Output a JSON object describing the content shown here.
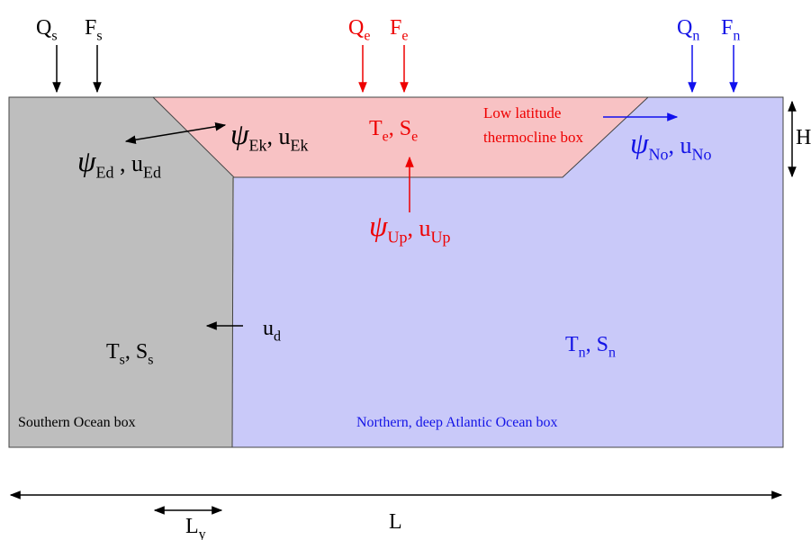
{
  "labels": [
    {
      "id": "qs",
      "parts": [
        {
          "t": "Q"
        },
        {
          "sub": "s"
        }
      ]
    },
    {
      "id": "fs",
      "parts": [
        {
          "t": "F"
        },
        {
          "sub": "s"
        }
      ]
    },
    {
      "id": "qe",
      "parts": [
        {
          "t": "Q"
        },
        {
          "sub": "e"
        }
      ]
    },
    {
      "id": "fe",
      "parts": [
        {
          "t": "F"
        },
        {
          "sub": "e"
        }
      ]
    },
    {
      "id": "qn",
      "parts": [
        {
          "t": "Q"
        },
        {
          "sub": "n"
        }
      ]
    },
    {
      "id": "fn",
      "parts": [
        {
          "t": "F"
        },
        {
          "sub": "n"
        }
      ]
    },
    {
      "id": "h",
      "parts": [
        {
          "t": "H"
        }
      ]
    },
    {
      "id": "ek",
      "parts": [
        {
          "greek": "ψ"
        },
        {
          "sub": "Ek"
        },
        {
          "t": ", u"
        },
        {
          "sub": "Ek"
        }
      ]
    },
    {
      "id": "ed",
      "parts": [
        {
          "greek": "ψ"
        },
        {
          "sub": "Ed"
        },
        {
          "t": " , u"
        },
        {
          "sub": "Ed"
        }
      ]
    },
    {
      "id": "te",
      "parts": [
        {
          "t": "T"
        },
        {
          "sub": "e"
        },
        {
          "t": ", S"
        },
        {
          "sub": "e"
        }
      ]
    },
    {
      "id": "low1",
      "parts": [
        {
          "t": "Low latitude"
        }
      ]
    },
    {
      "id": "low2",
      "parts": [
        {
          "t": "thermocline box"
        }
      ]
    },
    {
      "id": "no",
      "parts": [
        {
          "greek": "ψ"
        },
        {
          "sub": "No"
        },
        {
          "t": ", u"
        },
        {
          "sub": "No"
        }
      ]
    },
    {
      "id": "up",
      "parts": [
        {
          "greek": "ψ"
        },
        {
          "sub": "Up"
        },
        {
          "t": ", u"
        },
        {
          "sub": "Up"
        }
      ]
    },
    {
      "id": "ud",
      "parts": [
        {
          "t": "u"
        },
        {
          "sub": "d"
        }
      ]
    },
    {
      "id": "ts",
      "parts": [
        {
          "t": "T"
        },
        {
          "sub": "s"
        },
        {
          "t": ", S"
        },
        {
          "sub": "s"
        }
      ]
    },
    {
      "id": "tn",
      "parts": [
        {
          "t": "T"
        },
        {
          "sub": "n"
        },
        {
          "t": ", S"
        },
        {
          "sub": "n"
        }
      ]
    },
    {
      "id": "sob",
      "parts": [
        {
          "t": "Southern Ocean box"
        }
      ]
    },
    {
      "id": "nob",
      "parts": [
        {
          "t": "Northern, deep Atlantic Ocean box"
        }
      ]
    },
    {
      "id": "l",
      "parts": [
        {
          "t": "L"
        }
      ]
    },
    {
      "id": "ly",
      "parts": [
        {
          "t": "L"
        },
        {
          "sub": "y"
        }
      ]
    }
  ]
}
